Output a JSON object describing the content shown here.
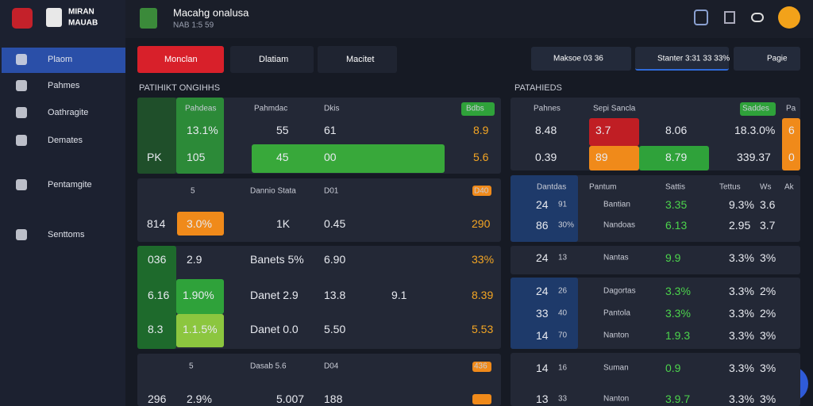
{
  "sidebar": {
    "brand": [
      "MIRAN",
      "MAUAB"
    ],
    "nav": [
      "Plaom",
      "Pahmes",
      "Oathragite",
      "Demates",
      "Pentamgite",
      "Senttoms"
    ]
  },
  "header": {
    "title": "Macahg onalusa",
    "subtitle": "NAB 1:5 59"
  },
  "tabs": [
    "Monclan",
    "Dlatiam",
    "Macitet"
  ],
  "stats": [
    "Maksoe 03 36",
    "Stanter 3:31 33 33%",
    "Pagie"
  ],
  "left": {
    "heading": "PATIHIKT ONGIHHS",
    "rows": [
      [
        "Pahdeas",
        "Pahmdac",
        "Dkis",
        "Bdbs"
      ],
      [
        "13.1%",
        "55",
        "61",
        "8.9"
      ],
      [
        "PK",
        "105",
        "45",
        "00",
        "5.6"
      ],
      [
        "5",
        "Dannio Stata",
        "D01",
        "D40"
      ],
      [
        "814",
        "3.0%",
        "1K",
        "0.45",
        "290"
      ],
      [
        "036",
        "2.9",
        "Banets 5%",
        "6.90",
        "33%"
      ],
      [
        "6.16",
        "1.90%",
        "Danet 2.9",
        "13.8",
        "9.1",
        "8.39"
      ],
      [
        "8.3",
        "1.1.5%",
        "Danet 0.0",
        "5.50",
        "5.53"
      ],
      [
        "5",
        "Dasab 5.6",
        "D04",
        "436"
      ],
      [
        "296",
        "2.9%",
        "5.007",
        "188"
      ]
    ]
  },
  "right": {
    "heading": "PATAHIEDS",
    "rows": [
      [
        "Pahnes",
        "Sepi Sancla",
        "Saddes",
        "Pa"
      ],
      [
        "8.48",
        "3.7",
        "8.06",
        "18.3.0%",
        "6"
      ],
      [
        "0.39",
        "89",
        "8.79",
        "339.37",
        "0"
      ],
      [
        "Dantdas",
        "Pantum",
        "Sattis",
        "Tettus",
        "Ws",
        "Ak"
      ],
      [
        "24",
        "91",
        "Bantian",
        "3.35",
        "9.3%",
        "3.6"
      ],
      [
        "86",
        "30%",
        "Nandoas",
        "6.13",
        "2.95",
        "3.7"
      ],
      [
        "24",
        "13",
        "Nantas",
        "9.9",
        "3.3%",
        "3%"
      ],
      [
        "24",
        "26",
        "Dagortas",
        "3.3%",
        "3.3%",
        "2%"
      ],
      [
        "33",
        "40",
        "Pantola",
        "3.3%",
        "3.3%",
        "2%"
      ],
      [
        "14",
        "70",
        "Nanton",
        "1.9.3",
        "3.3%",
        "3%"
      ],
      [
        "14",
        "16",
        "Suman",
        "0.9",
        "3.3%",
        "3%"
      ],
      [
        "13",
        "33",
        "Nanton",
        "3.9.7",
        "3.3%",
        "3%"
      ]
    ]
  }
}
